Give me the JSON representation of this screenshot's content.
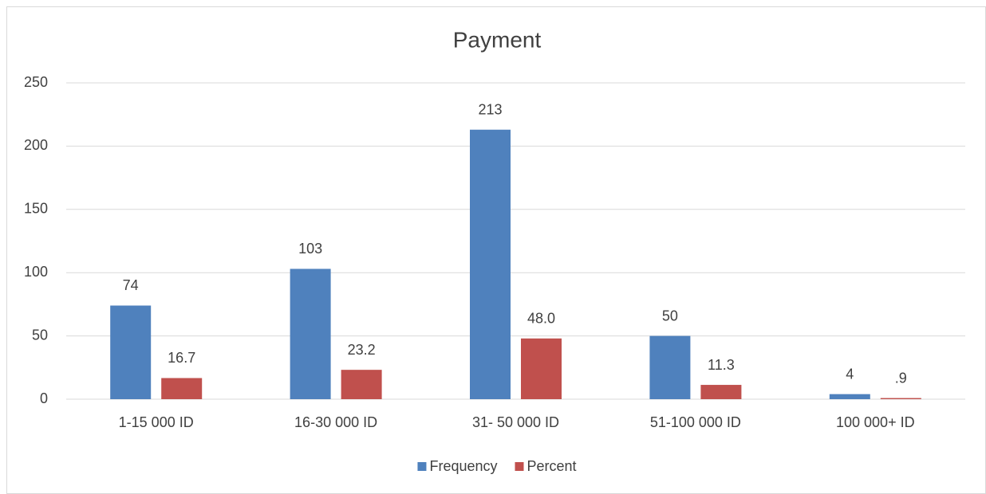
{
  "chart_data": {
    "type": "bar",
    "title": "Payment",
    "categories": [
      "1-15 000 ID",
      "16-30 000 ID",
      "31- 50 000 ID",
      "51-100 000 ID",
      "100 000+ ID"
    ],
    "series": [
      {
        "name": "Frequency",
        "color": "#4f81bd",
        "values": [
          74,
          103,
          213,
          50,
          4
        ]
      },
      {
        "name": "Percent",
        "color": "#c0504d",
        "values": [
          16.7,
          23.2,
          48.0,
          11.3,
          0.9
        ],
        "value_labels": [
          "16.7",
          "23.2",
          "48.0",
          "11.3",
          ".9"
        ]
      }
    ],
    "ylim": [
      0,
      250
    ],
    "yticks": [
      0,
      50,
      100,
      150,
      200,
      250
    ],
    "grid": true,
    "legend": "bottom"
  }
}
